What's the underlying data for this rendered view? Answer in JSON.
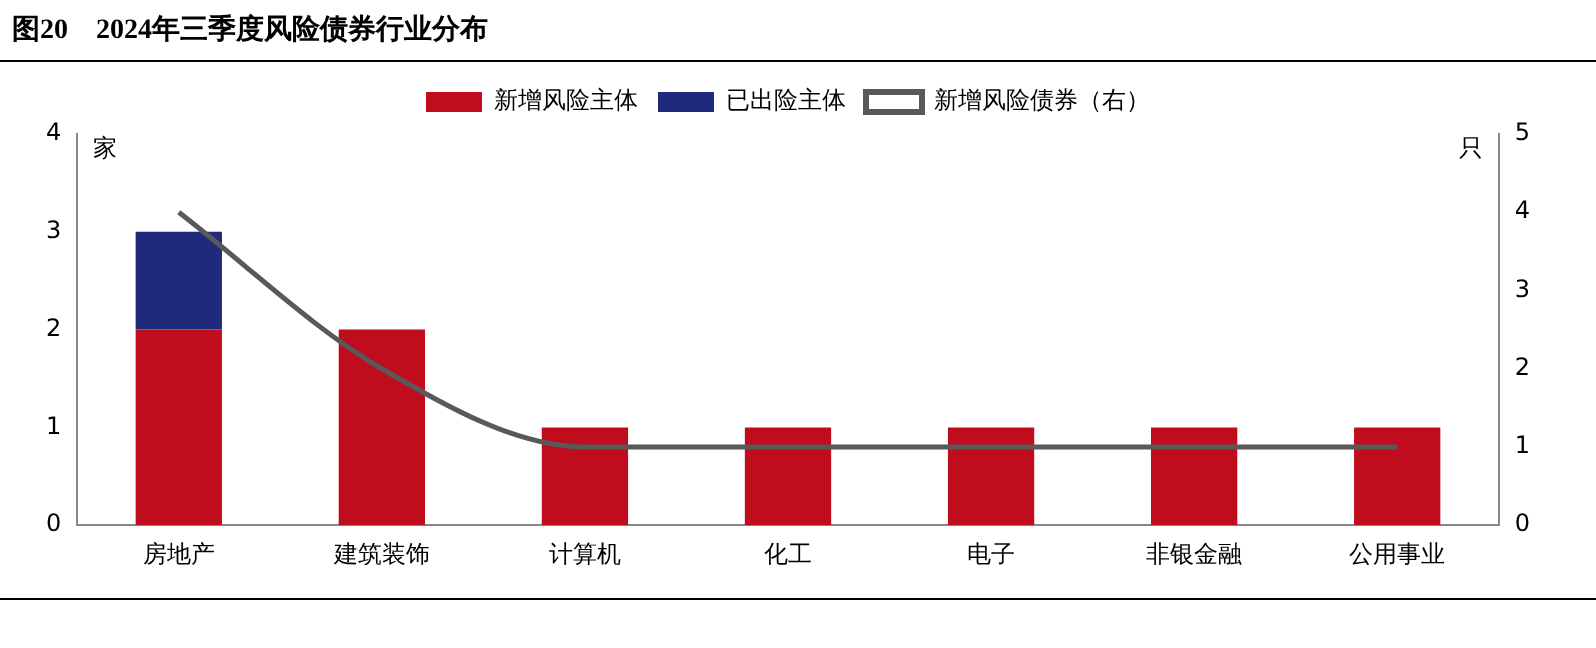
{
  "chart_data": {
    "type": "bar",
    "title": "图20　2024年三季度风险债券行业分布",
    "ylabel": "家",
    "y2label": "只",
    "categories": [
      "房地产",
      "建筑装饰",
      "计算机",
      "化工",
      "电子",
      "非银金融",
      "公用事业"
    ],
    "stacked": true,
    "series": [
      {
        "name": "新增风险主体",
        "color": "#c00d1e",
        "values": [
          2,
          2,
          1,
          1,
          1,
          1,
          1
        ]
      },
      {
        "name": "已出险主体",
        "color": "#1f2a7c",
        "values": [
          1,
          0,
          0,
          0,
          0,
          0,
          0
        ]
      },
      {
        "name": "新增风险债券（右）",
        "type": "line",
        "axis": "y2",
        "color": "#595959",
        "values": [
          4,
          2,
          1,
          1,
          1,
          1,
          1
        ]
      }
    ],
    "ylim": [
      0,
      4
    ],
    "yticks": [
      0,
      1,
      2,
      3,
      4
    ],
    "y2lim": [
      0,
      5
    ],
    "y2ticks": [
      0,
      1,
      2,
      3,
      4,
      5
    ],
    "grid": false,
    "legend": "top",
    "marker": "none"
  }
}
